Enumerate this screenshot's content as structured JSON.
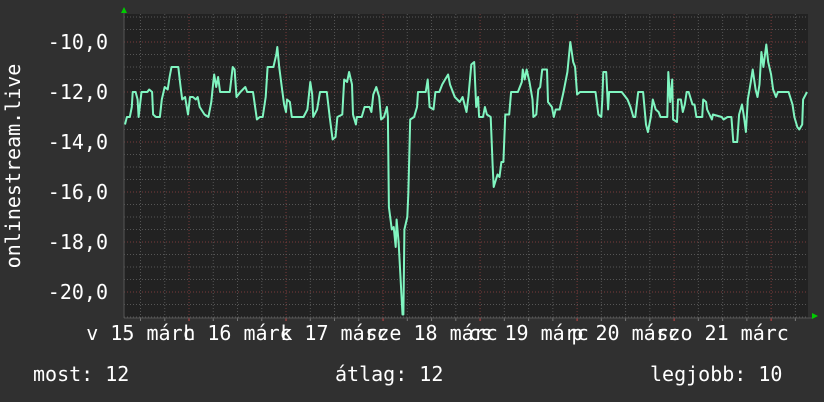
{
  "chart_data": {
    "type": "line",
    "title": "",
    "xlabel": "",
    "ylabel": "onlinestream.live",
    "x_unit": "day of March (decimal)",
    "xlim": [
      15.33,
      22.38
    ],
    "ylim": [
      -21.04,
      -8.88
    ],
    "y_ticks": [
      -10,
      -12,
      -14,
      -16,
      -18,
      -20
    ],
    "y_tick_labels": [
      "-10,0",
      "-12,0",
      "-14,0",
      "-16,0",
      "-18,0",
      "-20,0"
    ],
    "x_ticks": [
      15.5,
      16.5,
      17.5,
      18.5,
      19.5,
      20.5,
      21.5
    ],
    "x_tick_labels": [
      "v 15 márc",
      "h 16 márc",
      "k 17 márc",
      "sze 18 márc",
      "cs 19 márc",
      "p 20 márc",
      "szo 21 márc"
    ],
    "grid": true,
    "colors": {
      "background": "#303030",
      "plot": "#222222",
      "line": "#80f5c0",
      "major_grid": "#7a3a3a",
      "minor_grid": "#555555",
      "arrow": "#00cc00"
    },
    "series": [
      {
        "points": [
          [
            15.34,
            -13.3
          ],
          [
            15.36,
            -13.0
          ],
          [
            15.39,
            -13.0
          ],
          [
            15.41,
            -12.6
          ],
          [
            15.42,
            -12.0
          ],
          [
            15.45,
            -12.0
          ],
          [
            15.47,
            -12.3
          ],
          [
            15.48,
            -13.0
          ],
          [
            15.51,
            -12.0
          ],
          [
            15.57,
            -12.0
          ],
          [
            15.59,
            -11.9
          ],
          [
            15.62,
            -12.0
          ],
          [
            15.63,
            -12.9
          ],
          [
            15.66,
            -13.0
          ],
          [
            15.7,
            -13.0
          ],
          [
            15.72,
            -12.3
          ],
          [
            15.75,
            -11.8
          ],
          [
            15.78,
            -11.9
          ],
          [
            15.8,
            -11.4
          ],
          [
            15.82,
            -11.0
          ],
          [
            15.89,
            -11.0
          ],
          [
            15.91,
            -11.7
          ],
          [
            15.93,
            -12.3
          ],
          [
            15.96,
            -12.2
          ],
          [
            15.99,
            -12.9
          ],
          [
            16.01,
            -12.2
          ],
          [
            16.04,
            -12.2
          ],
          [
            16.07,
            -12.3
          ],
          [
            16.09,
            -12.2
          ],
          [
            16.11,
            -12.6
          ],
          [
            16.16,
            -12.9
          ],
          [
            16.2,
            -13.0
          ],
          [
            16.23,
            -12.4
          ],
          [
            16.25,
            -11.6
          ],
          [
            16.26,
            -11.3
          ],
          [
            16.28,
            -11.8
          ],
          [
            16.3,
            -11.4
          ],
          [
            16.32,
            -12.0
          ],
          [
            16.42,
            -12.0
          ],
          [
            16.45,
            -11.0
          ],
          [
            16.47,
            -11.1
          ],
          [
            16.49,
            -12.2
          ],
          [
            16.53,
            -12.0
          ],
          [
            16.58,
            -11.8
          ],
          [
            16.6,
            -12.0
          ],
          [
            16.66,
            -12.0
          ],
          [
            16.7,
            -13.1
          ],
          [
            16.73,
            -13.0
          ],
          [
            16.76,
            -13.0
          ],
          [
            16.79,
            -12.2
          ],
          [
            16.81,
            -11.0
          ],
          [
            16.87,
            -11.0
          ],
          [
            16.9,
            -10.5
          ],
          [
            16.91,
            -10.2
          ],
          [
            16.93,
            -11.0
          ],
          [
            16.96,
            -11.9
          ],
          [
            16.98,
            -12.5
          ],
          [
            17.0,
            -12.8
          ],
          [
            17.01,
            -12.3
          ],
          [
            17.04,
            -12.4
          ],
          [
            17.06,
            -13.0
          ],
          [
            17.14,
            -13.0
          ],
          [
            17.18,
            -13.0
          ],
          [
            17.22,
            -12.7
          ],
          [
            17.25,
            -11.6
          ],
          [
            17.27,
            -12.1
          ],
          [
            17.28,
            -13.0
          ],
          [
            17.32,
            -12.7
          ],
          [
            17.35,
            -12.0
          ],
          [
            17.42,
            -12.0
          ],
          [
            17.45,
            -13.0
          ],
          [
            17.48,
            -13.9
          ],
          [
            17.51,
            -13.8
          ],
          [
            17.53,
            -13.0
          ],
          [
            17.58,
            -12.9
          ],
          [
            17.6,
            -11.5
          ],
          [
            17.63,
            -11.6
          ],
          [
            17.65,
            -11.2
          ],
          [
            17.68,
            -11.7
          ],
          [
            17.69,
            -12.9
          ],
          [
            17.72,
            -13.3
          ],
          [
            17.73,
            -13.0
          ],
          [
            17.78,
            -13.0
          ],
          [
            17.81,
            -12.6
          ],
          [
            17.86,
            -12.6
          ],
          [
            17.88,
            -12.8
          ],
          [
            17.9,
            -12.1
          ],
          [
            17.93,
            -11.8
          ],
          [
            17.96,
            -12.2
          ],
          [
            17.98,
            -13.1
          ],
          [
            18.01,
            -13.0
          ],
          [
            18.04,
            -12.6
          ],
          [
            18.05,
            -13.0
          ],
          [
            18.06,
            -16.6
          ],
          [
            18.09,
            -17.5
          ],
          [
            18.11,
            -17.4
          ],
          [
            18.13,
            -18.2
          ],
          [
            18.14,
            -17.1
          ],
          [
            18.16,
            -18.0
          ],
          [
            18.2,
            -20.9
          ],
          [
            18.21,
            -20.9
          ],
          [
            18.22,
            -17.5
          ],
          [
            18.25,
            -17.0
          ],
          [
            18.26,
            -16.1
          ],
          [
            18.28,
            -13.1
          ],
          [
            18.32,
            -13.0
          ],
          [
            18.35,
            -12.6
          ],
          [
            18.36,
            -12.0
          ],
          [
            18.44,
            -12.0
          ],
          [
            18.46,
            -11.5
          ],
          [
            18.48,
            -12.6
          ],
          [
            18.52,
            -12.7
          ],
          [
            18.54,
            -12.0
          ],
          [
            18.58,
            -12.0
          ],
          [
            18.61,
            -11.7
          ],
          [
            18.64,
            -11.5
          ],
          [
            18.67,
            -11.3
          ],
          [
            18.69,
            -11.7
          ],
          [
            18.74,
            -12.2
          ],
          [
            18.79,
            -12.4
          ],
          [
            18.82,
            -12.2
          ],
          [
            18.86,
            -12.8
          ],
          [
            18.88,
            -12.2
          ],
          [
            18.91,
            -10.9
          ],
          [
            18.94,
            -10.8
          ],
          [
            18.96,
            -12.6
          ],
          [
            18.98,
            -12.2
          ],
          [
            18.99,
            -13.0
          ],
          [
            19.03,
            -13.0
          ],
          [
            19.05,
            -12.6
          ],
          [
            19.07,
            -12.9
          ],
          [
            19.11,
            -13.0
          ],
          [
            19.13,
            -15.0
          ],
          [
            19.14,
            -15.8
          ],
          [
            19.18,
            -15.3
          ],
          [
            19.2,
            -15.4
          ],
          [
            19.22,
            -14.8
          ],
          [
            19.24,
            -14.8
          ],
          [
            19.26,
            -12.9
          ],
          [
            19.3,
            -12.9
          ],
          [
            19.32,
            -12.0
          ],
          [
            19.39,
            -12.0
          ],
          [
            19.43,
            -11.6
          ],
          [
            19.44,
            -11.1
          ],
          [
            19.46,
            -11.5
          ],
          [
            19.48,
            -11.1
          ],
          [
            19.51,
            -11.6
          ],
          [
            19.54,
            -12.3
          ],
          [
            19.55,
            -13.0
          ],
          [
            19.58,
            -12.9
          ],
          [
            19.6,
            -11.9
          ],
          [
            19.62,
            -11.8
          ],
          [
            19.64,
            -11.1
          ],
          [
            19.69,
            -11.1
          ],
          [
            19.7,
            -12.4
          ],
          [
            19.74,
            -12.6
          ],
          [
            19.76,
            -13.0
          ],
          [
            19.78,
            -12.7
          ],
          [
            19.82,
            -12.7
          ],
          [
            19.86,
            -12.0
          ],
          [
            19.9,
            -11.2
          ],
          [
            19.93,
            -10.0
          ],
          [
            19.96,
            -10.8
          ],
          [
            19.98,
            -11.0
          ],
          [
            20.0,
            -12.1
          ],
          [
            20.03,
            -12.0
          ],
          [
            20.19,
            -12.0
          ],
          [
            20.22,
            -12.9
          ],
          [
            20.25,
            -13.0
          ],
          [
            20.26,
            -12.3
          ],
          [
            20.27,
            -11.2
          ],
          [
            20.3,
            -11.2
          ],
          [
            20.32,
            -12.7
          ],
          [
            20.33,
            -12.0
          ],
          [
            20.46,
            -12.0
          ],
          [
            20.52,
            -12.3
          ],
          [
            20.55,
            -12.6
          ],
          [
            20.58,
            -13.0
          ],
          [
            20.6,
            -13.0
          ],
          [
            20.63,
            -12.0
          ],
          [
            20.68,
            -12.0
          ],
          [
            20.71,
            -13.3
          ],
          [
            20.73,
            -13.6
          ],
          [
            20.76,
            -13.0
          ],
          [
            20.78,
            -12.3
          ],
          [
            20.81,
            -12.7
          ],
          [
            20.84,
            -12.8
          ],
          [
            20.86,
            -13.0
          ],
          [
            20.93,
            -13.0
          ],
          [
            20.94,
            -11.2
          ],
          [
            20.96,
            -12.4
          ],
          [
            20.98,
            -11.5
          ],
          [
            20.99,
            -13.1
          ],
          [
            21.03,
            -13.2
          ],
          [
            21.04,
            -12.3
          ],
          [
            21.07,
            -12.3
          ],
          [
            21.09,
            -12.8
          ],
          [
            21.11,
            -12.5
          ],
          [
            21.13,
            -12.0
          ],
          [
            21.15,
            -12.0
          ],
          [
            21.19,
            -12.5
          ],
          [
            21.21,
            -12.5
          ],
          [
            21.23,
            -13.0
          ],
          [
            21.29,
            -13.0
          ],
          [
            21.3,
            -12.3
          ],
          [
            21.33,
            -12.4
          ],
          [
            21.34,
            -12.7
          ],
          [
            21.39,
            -13.1
          ],
          [
            21.4,
            -12.9
          ],
          [
            21.49,
            -13.0
          ],
          [
            21.51,
            -13.1
          ],
          [
            21.55,
            -13.0
          ],
          [
            21.59,
            -13.0
          ],
          [
            21.61,
            -14.0
          ],
          [
            21.65,
            -14.0
          ],
          [
            21.67,
            -12.9
          ],
          [
            21.7,
            -12.5
          ],
          [
            21.72,
            -13.0
          ],
          [
            21.74,
            -13.6
          ],
          [
            21.76,
            -12.3
          ],
          [
            21.79,
            -11.6
          ],
          [
            21.81,
            -11.1
          ],
          [
            21.84,
            -11.9
          ],
          [
            21.86,
            -12.2
          ],
          [
            21.88,
            -11.7
          ],
          [
            21.9,
            -10.4
          ],
          [
            21.92,
            -11.0
          ],
          [
            21.95,
            -10.1
          ],
          [
            21.97,
            -10.8
          ],
          [
            22.0,
            -11.3
          ],
          [
            22.02,
            -11.9
          ],
          [
            22.05,
            -12.2
          ],
          [
            22.07,
            -12.0
          ],
          [
            22.18,
            -12.0
          ],
          [
            22.22,
            -12.5
          ],
          [
            22.24,
            -13.0
          ],
          [
            22.27,
            -13.4
          ],
          [
            22.29,
            -13.5
          ],
          [
            22.32,
            -13.3
          ],
          [
            22.33,
            -12.3
          ],
          [
            22.37,
            -12.0
          ]
        ]
      }
    ]
  },
  "legend": {
    "current_label": "most: 12",
    "average_label": "átlag: 12",
    "best_label": "legjobb: 10"
  }
}
